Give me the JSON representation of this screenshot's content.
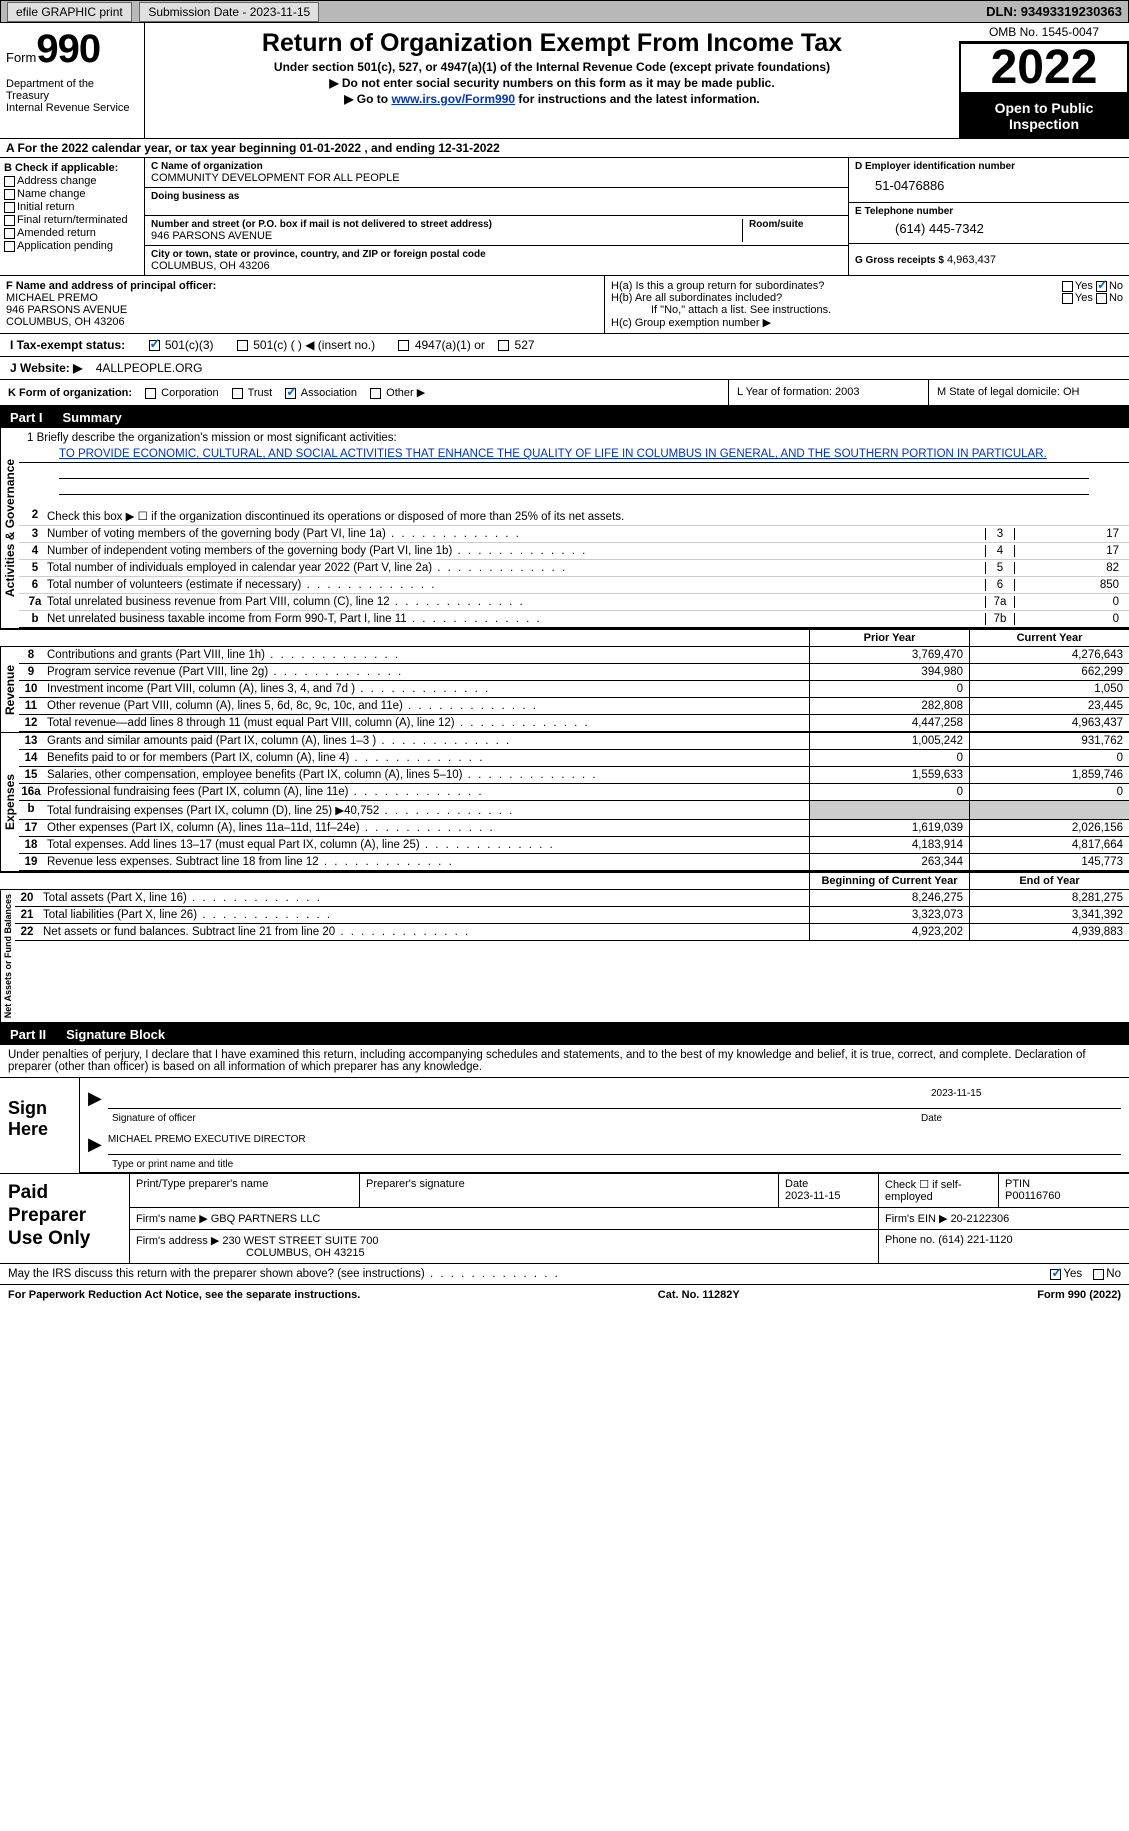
{
  "topbar": {
    "efile": "efile GRAPHIC print",
    "submission": "Submission Date - 2023-11-15",
    "dln": "DLN: 93493319230363"
  },
  "header": {
    "form": "Form",
    "form_num": "990",
    "dept": "Department of the Treasury",
    "irs": "Internal Revenue Service",
    "title": "Return of Organization Exempt From Income Tax",
    "sub1": "Under section 501(c), 527, or 4947(a)(1) of the Internal Revenue Code (except private foundations)",
    "sub2": "▶ Do not enter social security numbers on this form as it may be made public.",
    "sub3_pre": "▶ Go to ",
    "sub3_link": "www.irs.gov/Form990",
    "sub3_post": " for instructions and the latest information.",
    "omb": "OMB No. 1545-0047",
    "year": "2022",
    "open": "Open to Public Inspection"
  },
  "row_a": "A For the 2022 calendar year, or tax year beginning 01-01-2022    , and ending 12-31-2022",
  "section_b": {
    "b_label": "B Check if applicable:",
    "checks": [
      "Address change",
      "Name change",
      "Initial return",
      "Final return/terminated",
      "Amended return",
      "Application pending"
    ],
    "c_label": "C Name of organization",
    "org_name": "COMMUNITY DEVELOPMENT FOR ALL PEOPLE",
    "dba_label": "Doing business as",
    "addr_label": "Number and street (or P.O. box if mail is not delivered to street address)",
    "room_label": "Room/suite",
    "addr": "946 PARSONS AVENUE",
    "city_label": "City or town, state or province, country, and ZIP or foreign postal code",
    "city": "COLUMBUS, OH  43206",
    "d_label": "D Employer identification number",
    "ein": "51-0476886",
    "e_label": "E Telephone number",
    "phone": "(614) 445-7342",
    "g_label": "G Gross receipts $",
    "gross": "4,963,437"
  },
  "section_f": {
    "f_label": "F Name and address of principal officer:",
    "officer": "MICHAEL PREMO",
    "addr1": "946 PARSONS AVENUE",
    "addr2": "COLUMBUS, OH  43206",
    "ha": "H(a)  Is this a group return for subordinates?",
    "hb": "H(b)  Are all subordinates included?",
    "hb_note": "If \"No,\" attach a list. See instructions.",
    "hc": "H(c)  Group exemption number ▶",
    "yes": "Yes",
    "no": "No"
  },
  "tax_status": {
    "i_label": "I  Tax-exempt status:",
    "opts": [
      "501(c)(3)",
      "501(c) (   ) ◀ (insert no.)",
      "4947(a)(1) or",
      "527"
    ]
  },
  "website": {
    "j_label": "J  Website: ▶",
    "url": "4ALLPEOPLE.ORG"
  },
  "k_row": {
    "k_label": "K Form of organization:",
    "opts": [
      "Corporation",
      "Trust",
      "Association",
      "Other ▶"
    ],
    "l": "L Year of formation: 2003",
    "m": "M State of legal domicile: OH"
  },
  "part1_label": "Part I",
  "part1_title": "Summary",
  "mission": {
    "line1_label": "1  Briefly describe the organization's mission or most significant activities:",
    "text": "TO PROVIDE ECONOMIC, CULTURAL, AND SOCIAL ACTIVITIES THAT ENHANCE THE QUALITY OF LIFE IN COLUMBUS IN GENERAL, AND THE SOUTHERN PORTION IN PARTICULAR."
  },
  "vert_labels": {
    "gov": "Activities & Governance",
    "rev": "Revenue",
    "exp": "Expenses",
    "net": "Net Assets or Fund Balances"
  },
  "lines": {
    "l2": "Check this box ▶ ☐ if the organization discontinued its operations or disposed of more than 25% of its net assets.",
    "l3": {
      "d": "Number of voting members of the governing body (Part VI, line 1a)",
      "b": "3",
      "v": "17"
    },
    "l4": {
      "d": "Number of independent voting members of the governing body (Part VI, line 1b)",
      "b": "4",
      "v": "17"
    },
    "l5": {
      "d": "Total number of individuals employed in calendar year 2022 (Part V, line 2a)",
      "b": "5",
      "v": "82"
    },
    "l6": {
      "d": "Total number of volunteers (estimate if necessary)",
      "b": "6",
      "v": "850"
    },
    "l7a": {
      "d": "Total unrelated business revenue from Part VIII, column (C), line 12",
      "b": "7a",
      "v": "0"
    },
    "l7b": {
      "d": "Net unrelated business taxable income from Form 990-T, Part I, line 11",
      "b": "7b",
      "v": "0"
    }
  },
  "col_headers": {
    "prior": "Prior Year",
    "curr": "Current Year"
  },
  "revenue": [
    {
      "n": "8",
      "d": "Contributions and grants (Part VIII, line 1h)",
      "p": "3,769,470",
      "c": "4,276,643"
    },
    {
      "n": "9",
      "d": "Program service revenue (Part VIII, line 2g)",
      "p": "394,980",
      "c": "662,299"
    },
    {
      "n": "10",
      "d": "Investment income (Part VIII, column (A), lines 3, 4, and 7d )",
      "p": "0",
      "c": "1,050"
    },
    {
      "n": "11",
      "d": "Other revenue (Part VIII, column (A), lines 5, 6d, 8c, 9c, 10c, and 11e)",
      "p": "282,808",
      "c": "23,445"
    },
    {
      "n": "12",
      "d": "Total revenue—add lines 8 through 11 (must equal Part VIII, column (A), line 12)",
      "p": "4,447,258",
      "c": "4,963,437"
    }
  ],
  "expenses": [
    {
      "n": "13",
      "d": "Grants and similar amounts paid (Part IX, column (A), lines 1–3 )",
      "p": "1,005,242",
      "c": "931,762"
    },
    {
      "n": "14",
      "d": "Benefits paid to or for members (Part IX, column (A), line 4)",
      "p": "0",
      "c": "0"
    },
    {
      "n": "15",
      "d": "Salaries, other compensation, employee benefits (Part IX, column (A), lines 5–10)",
      "p": "1,559,633",
      "c": "1,859,746"
    },
    {
      "n": "16a",
      "d": "Professional fundraising fees (Part IX, column (A), line 11e)",
      "p": "0",
      "c": "0"
    },
    {
      "n": "b",
      "d": "Total fundraising expenses (Part IX, column (D), line 25) ▶40,752",
      "p": "",
      "c": "",
      "shaded": true
    },
    {
      "n": "17",
      "d": "Other expenses (Part IX, column (A), lines 11a–11d, 11f–24e)",
      "p": "1,619,039",
      "c": "2,026,156"
    },
    {
      "n": "18",
      "d": "Total expenses. Add lines 13–17 (must equal Part IX, column (A), line 25)",
      "p": "4,183,914",
      "c": "4,817,664"
    },
    {
      "n": "19",
      "d": "Revenue less expenses. Subtract line 18 from line 12",
      "p": "263,344",
      "c": "145,773"
    }
  ],
  "net_headers": {
    "b": "Beginning of Current Year",
    "e": "End of Year"
  },
  "netassets": [
    {
      "n": "20",
      "d": "Total assets (Part X, line 16)",
      "p": "8,246,275",
      "c": "8,281,275"
    },
    {
      "n": "21",
      "d": "Total liabilities (Part X, line 26)",
      "p": "3,323,073",
      "c": "3,341,392"
    },
    {
      "n": "22",
      "d": "Net assets or fund balances. Subtract line 21 from line 20",
      "p": "4,923,202",
      "c": "4,939,883"
    }
  ],
  "part2_label": "Part II",
  "part2_title": "Signature Block",
  "penalties": "Under penalties of perjury, I declare that I have examined this return, including accompanying schedules and statements, and to the best of my knowledge and belief, it is true, correct, and complete. Declaration of preparer (other than officer) is based on all information of which preparer has any knowledge.",
  "sign": {
    "label": "Sign Here",
    "sig_label": "Signature of officer",
    "date": "2023-11-15",
    "date_label": "Date",
    "name": "MICHAEL PREMO  EXECUTIVE DIRECTOR",
    "name_label": "Type or print name and title"
  },
  "paid": {
    "label": "Paid Preparer Use Only",
    "print_label": "Print/Type preparer's name",
    "sig_label": "Preparer's signature",
    "date_label": "Date",
    "date": "2023-11-15",
    "check_label": "Check ☐ if self-employed",
    "ptin_label": "PTIN",
    "ptin": "P00116760",
    "firm_name_label": "Firm's name     ▶",
    "firm_name": "GBQ PARTNERS LLC",
    "firm_ein_label": "Firm's EIN ▶",
    "firm_ein": "20-2122306",
    "firm_addr_label": "Firm's address ▶",
    "firm_addr1": "230 WEST STREET SUITE 700",
    "firm_addr2": "COLUMBUS, OH  43215",
    "phone_label": "Phone no.",
    "phone": "(614) 221-1120"
  },
  "discuss": "May the IRS discuss this return with the preparer shown above? (see instructions)",
  "footer": {
    "pra": "For Paperwork Reduction Act Notice, see the separate instructions.",
    "cat": "Cat. No. 11282Y",
    "form": "Form 990 (2022)"
  }
}
